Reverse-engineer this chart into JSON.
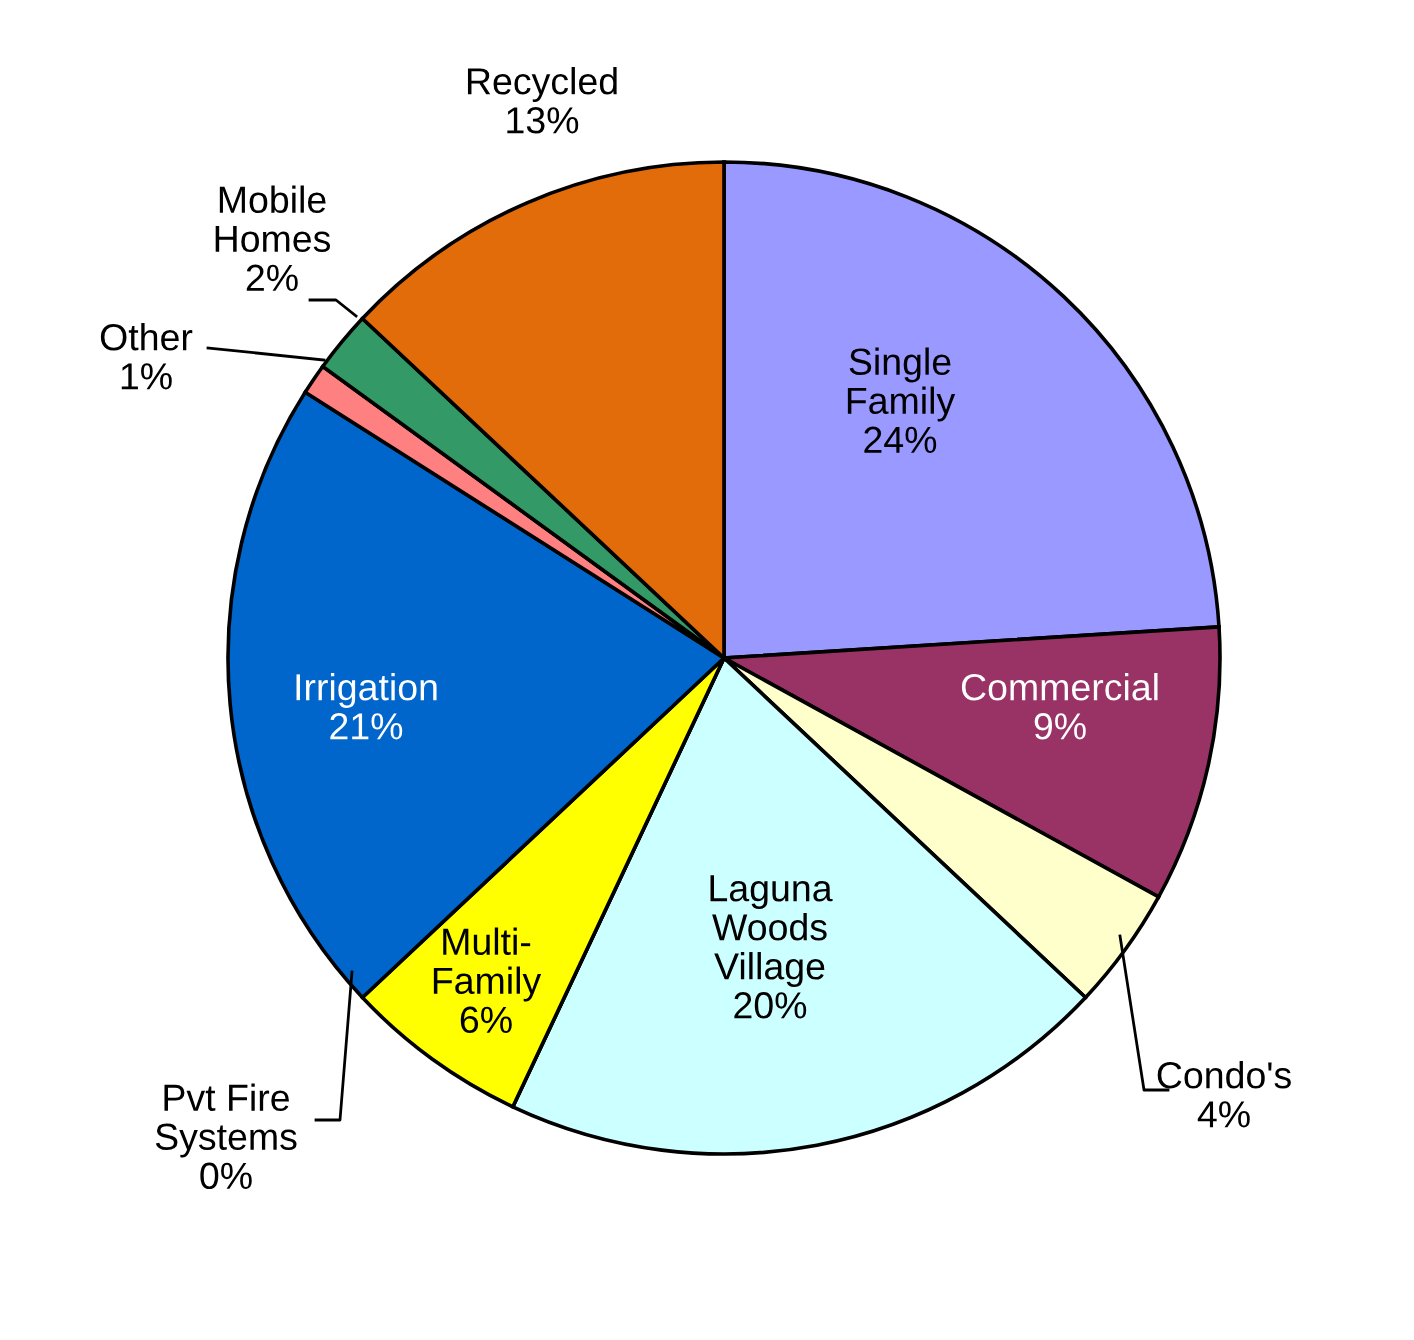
{
  "chart_data": {
    "type": "pie",
    "categories": [
      "Single\nFamily",
      "Commercial",
      "Condo's",
      "Laguna\nWoods\nVillage",
      "Pvt Fire\nSystems",
      "Multi-\nFamily",
      "Irrigation",
      "Other",
      "Mobile\nHomes",
      "Recycled"
    ],
    "values": [
      24,
      9,
      4,
      20,
      0,
      6,
      21,
      1,
      2,
      13
    ],
    "value_labels": [
      "24%",
      "9%",
      "4%",
      "20%",
      "0%",
      "6%",
      "21%",
      "1%",
      "2%",
      "13%"
    ],
    "colors": [
      "#9999ff",
      "#993366",
      "#ffffcc",
      "#ccffff",
      "#ff0000",
      "#ffff00",
      "#0066cc",
      "#ff8080",
      "#339966",
      "#e36c0a"
    ],
    "legend": false
  }
}
